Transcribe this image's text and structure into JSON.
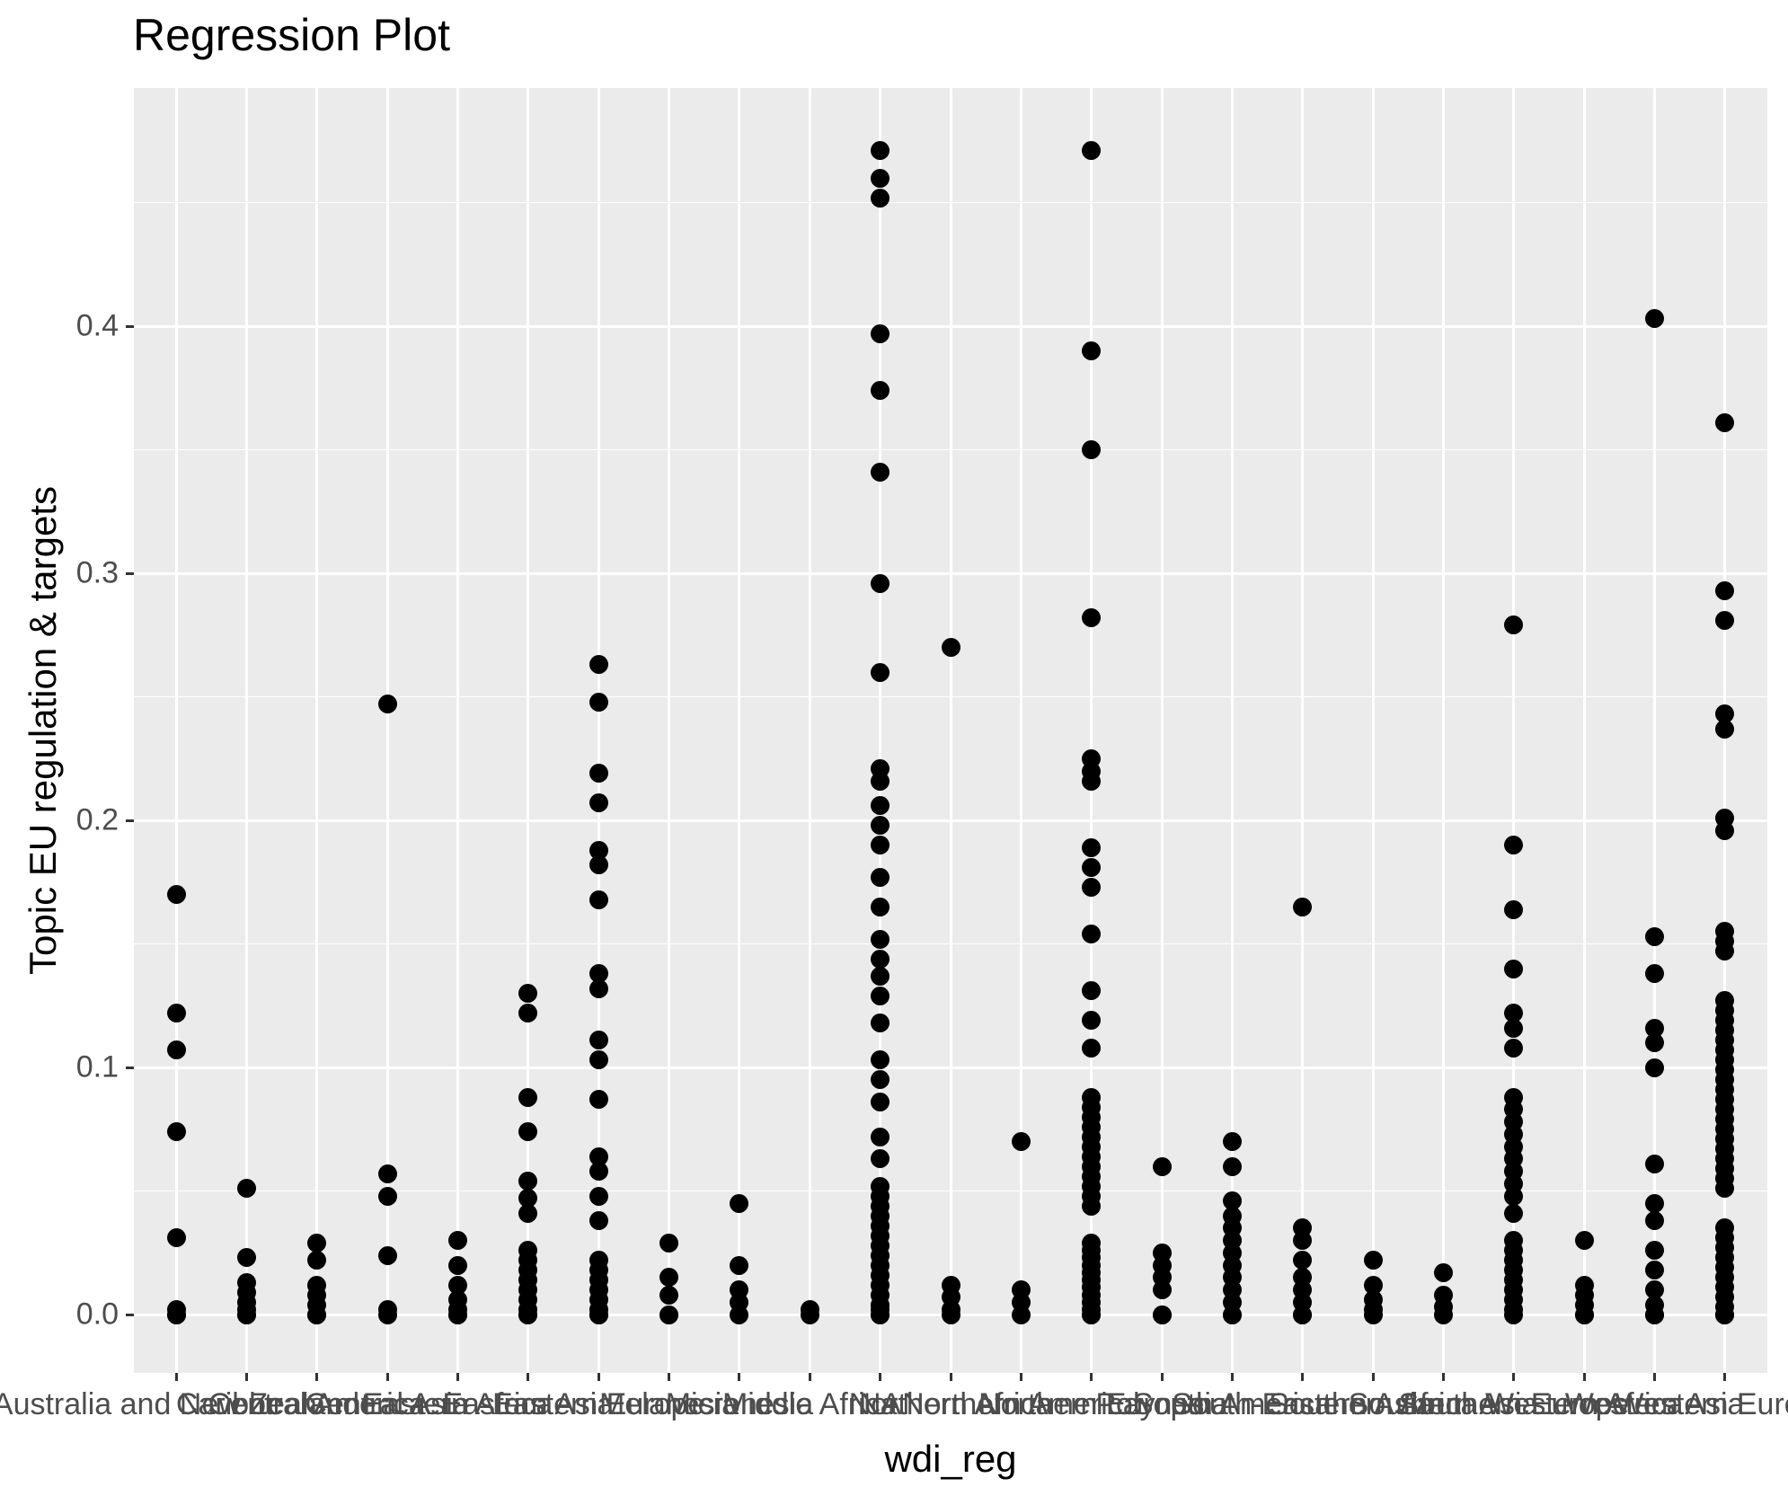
{
  "title": "Regression Plot",
  "colors": {
    "panel_bg": "#EBEBEB",
    "grid": "#FFFFFF",
    "point": "#000000",
    "tick_label": "#4D4D4D",
    "tick_mark": "#333333",
    "text": "#000000"
  },
  "chart_data": {
    "type": "scatter",
    "title": "Regression Plot",
    "xlabel": "wdi_reg",
    "ylabel": "Topic EU regulation & targets",
    "grid": "on",
    "legend": "none",
    "ylim": [
      -0.0236,
      0.4964
    ],
    "y_tick_values": [
      0.0,
      0.1,
      0.2,
      0.3,
      0.4
    ],
    "y_tick_labels": [
      "0.0",
      "0.1",
      "0.2",
      "0.3",
      "0.4"
    ],
    "y_minor_values": [
      0.05,
      0.15,
      0.25,
      0.35,
      0.45
    ],
    "categories": [
      "Australia and New Zealand",
      "Caribbean",
      "Central America",
      "Central Asia",
      "Eastern Africa",
      "Eastern Asia",
      "Eastern Europe",
      "Melanesia",
      "Micronesia",
      "Middle Africa",
      "NA",
      "Northern Africa",
      "Northern America",
      "Northern Europe",
      "Polynesia",
      "South America",
      "South-Eastern Asia",
      "Southern Africa",
      "Southern Asia",
      "Southern Europe",
      "Western Africa",
      "Western Asia",
      "Western Europe"
    ],
    "series": [
      {
        "name": "Australia and New Zealand",
        "values": [
          0.17,
          0.122,
          0.107,
          0.074,
          0.031,
          0.002,
          0.0,
          0.0
        ]
      },
      {
        "name": "Caribbean",
        "values": [
          0.051,
          0.023,
          0.013,
          0.009,
          0.005,
          0.002,
          0.0,
          0.0
        ]
      },
      {
        "name": "Central America",
        "values": [
          0.029,
          0.022,
          0.012,
          0.008,
          0.004,
          0.0,
          0.0
        ]
      },
      {
        "name": "Central Asia",
        "values": [
          0.247,
          0.057,
          0.048,
          0.024,
          0.002,
          0.0
        ]
      },
      {
        "name": "Eastern Africa",
        "values": [
          0.03,
          0.02,
          0.012,
          0.006,
          0.002,
          0.0,
          0.0
        ]
      },
      {
        "name": "Eastern Asia",
        "values": [
          0.13,
          0.122,
          0.088,
          0.074,
          0.054,
          0.047,
          0.041,
          0.026,
          0.022,
          0.018,
          0.014,
          0.01,
          0.006,
          0.002,
          0.0,
          0.0
        ]
      },
      {
        "name": "Eastern Europe",
        "values": [
          0.263,
          0.248,
          0.219,
          0.207,
          0.188,
          0.182,
          0.168,
          0.138,
          0.132,
          0.111,
          0.103,
          0.087,
          0.064,
          0.058,
          0.048,
          0.038,
          0.022,
          0.018,
          0.014,
          0.01,
          0.006,
          0.002,
          0.0,
          0.0
        ]
      },
      {
        "name": "Melanesia",
        "values": [
          0.029,
          0.015,
          0.008,
          0.0,
          0.0
        ]
      },
      {
        "name": "Micronesia",
        "values": [
          0.045,
          0.02,
          0.01,
          0.005,
          0.0
        ]
      },
      {
        "name": "Middle Africa",
        "values": [
          0.002,
          0.0
        ]
      },
      {
        "name": "NA",
        "values": [
          0.471,
          0.46,
          0.452,
          0.397,
          0.374,
          0.341,
          0.296,
          0.26,
          0.221,
          0.216,
          0.206,
          0.198,
          0.19,
          0.177,
          0.165,
          0.152,
          0.144,
          0.137,
          0.129,
          0.118,
          0.103,
          0.095,
          0.086,
          0.072,
          0.063,
          0.052,
          0.048,
          0.044,
          0.04,
          0.036,
          0.032,
          0.028,
          0.024,
          0.02,
          0.016,
          0.012,
          0.008,
          0.004,
          0.002,
          0.0,
          0.0
        ]
      },
      {
        "name": "Northern Africa",
        "values": [
          0.27,
          0.012,
          0.007,
          0.002,
          0.0
        ]
      },
      {
        "name": "Northern America",
        "values": [
          0.07,
          0.01,
          0.005,
          0.0
        ]
      },
      {
        "name": "Northern Europe",
        "values": [
          0.471,
          0.39,
          0.35,
          0.282,
          0.225,
          0.22,
          0.216,
          0.189,
          0.181,
          0.173,
          0.154,
          0.131,
          0.119,
          0.108,
          0.088,
          0.084,
          0.08,
          0.076,
          0.072,
          0.068,
          0.064,
          0.06,
          0.056,
          0.052,
          0.048,
          0.044,
          0.029,
          0.026,
          0.023,
          0.02,
          0.017,
          0.014,
          0.011,
          0.008,
          0.005,
          0.002,
          0.0,
          0.0
        ]
      },
      {
        "name": "Polynesia",
        "values": [
          0.06,
          0.025,
          0.02,
          0.015,
          0.01,
          0.0,
          0.0
        ]
      },
      {
        "name": "South America",
        "values": [
          0.07,
          0.06,
          0.046,
          0.04,
          0.035,
          0.03,
          0.025,
          0.02,
          0.015,
          0.01,
          0.005,
          0.0,
          0.0
        ]
      },
      {
        "name": "South-Eastern Asia",
        "values": [
          0.165,
          0.035,
          0.03,
          0.022,
          0.015,
          0.01,
          0.005,
          0.0,
          0.0
        ]
      },
      {
        "name": "Southern Africa",
        "values": [
          0.022,
          0.012,
          0.006,
          0.002,
          0.0
        ]
      },
      {
        "name": "Southern Asia",
        "values": [
          0.017,
          0.008,
          0.003,
          0.0
        ]
      },
      {
        "name": "Southern Europe",
        "values": [
          0.279,
          0.19,
          0.164,
          0.14,
          0.122,
          0.116,
          0.108,
          0.088,
          0.083,
          0.078,
          0.073,
          0.068,
          0.063,
          0.058,
          0.053,
          0.048,
          0.041,
          0.03,
          0.026,
          0.022,
          0.018,
          0.014,
          0.01,
          0.006,
          0.002,
          0.0
        ]
      },
      {
        "name": "Western Africa",
        "values": [
          0.03,
          0.012,
          0.008,
          0.004,
          0.0,
          0.0
        ]
      },
      {
        "name": "Western Asia",
        "values": [
          0.403,
          0.153,
          0.138,
          0.116,
          0.11,
          0.1,
          0.061,
          0.045,
          0.038,
          0.026,
          0.018,
          0.01,
          0.004,
          0.0,
          0.0
        ]
      },
      {
        "name": "Western Europe",
        "values": [
          0.361,
          0.293,
          0.281,
          0.243,
          0.237,
          0.201,
          0.196,
          0.155,
          0.151,
          0.147,
          0.127,
          0.123,
          0.119,
          0.115,
          0.111,
          0.107,
          0.103,
          0.099,
          0.095,
          0.091,
          0.087,
          0.083,
          0.079,
          0.075,
          0.071,
          0.067,
          0.063,
          0.059,
          0.055,
          0.051,
          0.035,
          0.031,
          0.027,
          0.023,
          0.019,
          0.015,
          0.011,
          0.007,
          0.003,
          0.0,
          0.0
        ]
      }
    ]
  }
}
